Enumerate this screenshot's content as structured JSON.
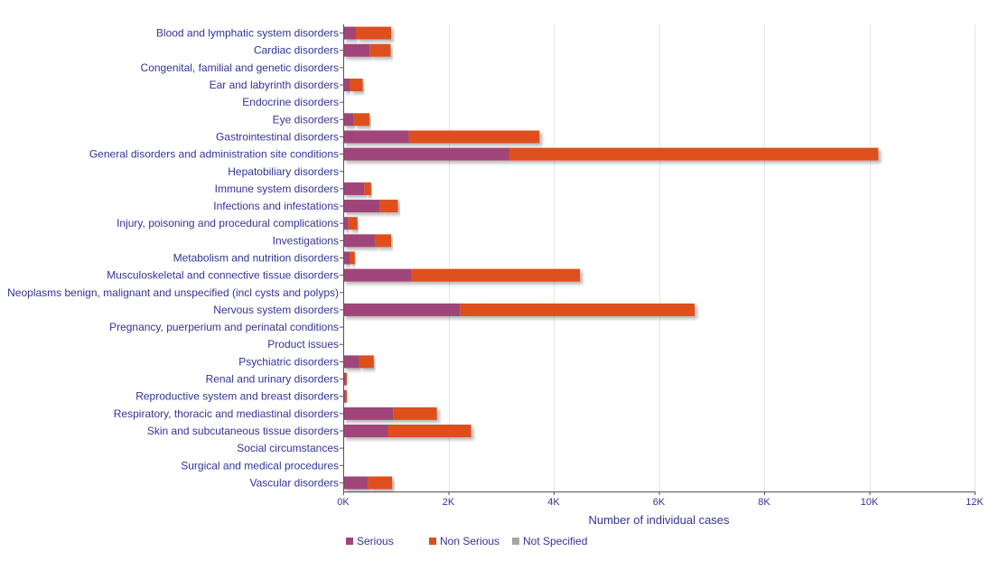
{
  "chart_data": {
    "type": "bar",
    "orientation": "horizontal",
    "stacked": true,
    "categories": [
      "Blood and lymphatic system disorders",
      "Cardiac disorders",
      "Congenital, familial and genetic disorders",
      "Ear and labyrinth disorders",
      "Endocrine disorders",
      "Eye disorders",
      "Gastrointestinal disorders",
      "General disorders and administration site conditions",
      "Hepatobiliary disorders",
      "Immune system disorders",
      "Infections and infestations",
      "Injury, poisoning and procedural complications",
      "Investigations",
      "Metabolism and nutrition disorders",
      "Musculoskeletal and connective tissue disorders",
      "Neoplasms benign, malignant and unspecified (incl cysts and polyps)",
      "Nervous system disorders",
      "Pregnancy, puerperium and perinatal conditions",
      "Product issues",
      "Psychiatric disorders",
      "Renal and urinary disorders",
      "Reproductive system and breast disorders",
      "Respiratory, thoracic and mediastinal disorders",
      "Skin and subcutaneous tissue disorders",
      "Social circumstances",
      "Surgical and medical procedures",
      "Vascular disorders"
    ],
    "series": [
      {
        "name": "Serious",
        "color": "#a0457a",
        "values": [
          240,
          500,
          0,
          120,
          0,
          200,
          1250,
          3150,
          0,
          400,
          700,
          100,
          600,
          120,
          1300,
          0,
          2220,
          0,
          0,
          300,
          50,
          40,
          950,
          850,
          0,
          0,
          470
        ]
      },
      {
        "name": "Non Serious",
        "color": "#dd4f1f",
        "values": [
          670,
          400,
          0,
          250,
          0,
          300,
          2480,
          7020,
          0,
          130,
          340,
          170,
          310,
          100,
          3200,
          0,
          4460,
          0,
          0,
          280,
          20,
          30,
          830,
          1580,
          0,
          0,
          460
        ]
      },
      {
        "name": "Not Specified",
        "color": "#a6a6a6",
        "values": [
          0,
          0,
          0,
          0,
          0,
          0,
          0,
          0,
          0,
          0,
          0,
          0,
          0,
          0,
          0,
          0,
          0,
          0,
          0,
          0,
          0,
          0,
          0,
          0,
          0,
          0,
          0
        ]
      }
    ],
    "xlabel": "Number of individual cases",
    "xlim": [
      0,
      12000
    ],
    "xticks": [
      0,
      2000,
      4000,
      6000,
      8000,
      10000,
      12000
    ],
    "xtick_labels": [
      "0K",
      "2K",
      "4K",
      "6K",
      "8K",
      "10K",
      "12K"
    ],
    "grid": true,
    "legend_position": "bottom-left"
  }
}
